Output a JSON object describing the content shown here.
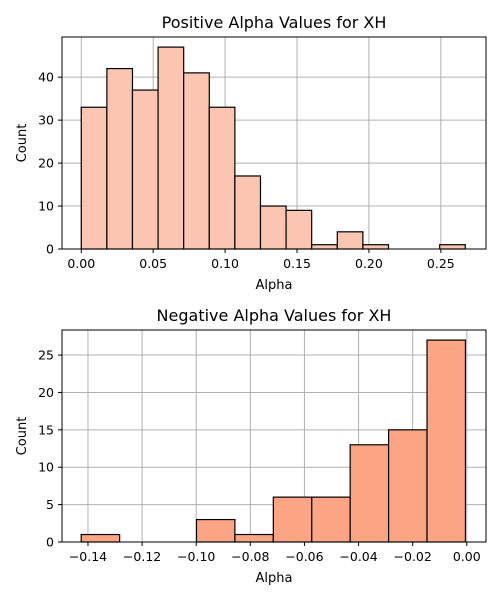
{
  "chart_data": [
    {
      "type": "bar",
      "title": "Positive Alpha Values for XH",
      "xlabel": "Alpha",
      "ylabel": "Count",
      "xlim": [
        -0.0134,
        0.2814
      ],
      "ylim": [
        0,
        49.35
      ],
      "xticks": [
        0.0,
        0.05,
        0.1,
        0.15,
        0.2,
        0.25
      ],
      "xtick_labels": [
        "0.00",
        "0.05",
        "0.10",
        "0.15",
        "0.20",
        "0.25"
      ],
      "yticks": [
        0,
        10,
        20,
        30,
        40
      ],
      "yticks_labels": [
        "0",
        "10",
        "20",
        "30",
        "40"
      ],
      "grid": true,
      "bar_color": "#fcc5b1",
      "bins": [
        {
          "x0": 0.0,
          "x1": 0.0178,
          "value": 33
        },
        {
          "x0": 0.0178,
          "x1": 0.0356,
          "value": 42
        },
        {
          "x0": 0.0356,
          "x1": 0.0534,
          "value": 37
        },
        {
          "x0": 0.0534,
          "x1": 0.0712,
          "value": 47
        },
        {
          "x0": 0.0712,
          "x1": 0.089,
          "value": 41
        },
        {
          "x0": 0.089,
          "x1": 0.1068,
          "value": 33
        },
        {
          "x0": 0.1068,
          "x1": 0.1246,
          "value": 17
        },
        {
          "x0": 0.1246,
          "x1": 0.1424,
          "value": 10
        },
        {
          "x0": 0.1424,
          "x1": 0.1602,
          "value": 9
        },
        {
          "x0": 0.1602,
          "x1": 0.178,
          "value": 1
        },
        {
          "x0": 0.178,
          "x1": 0.1958,
          "value": 4
        },
        {
          "x0": 0.1958,
          "x1": 0.2136,
          "value": 1
        },
        {
          "x0": 0.2136,
          "x1": 0.2314,
          "value": 0
        },
        {
          "x0": 0.2314,
          "x1": 0.2492,
          "value": 0
        },
        {
          "x0": 0.2492,
          "x1": 0.267,
          "value": 1
        }
      ]
    },
    {
      "type": "bar",
      "title": "Negative Alpha Values for XH",
      "xlabel": "Alpha",
      "ylabel": "Count",
      "xlim": [
        -0.1496,
        0.0071
      ],
      "ylim": [
        0,
        28.35
      ],
      "xticks": [
        -0.14,
        -0.12,
        -0.1,
        -0.08,
        -0.06,
        -0.04,
        -0.02,
        0.0
      ],
      "xtick_labels": [
        "−0.14",
        "−0.12",
        "−0.10",
        "−0.08",
        "−0.06",
        "−0.04",
        "−0.02",
        "0.00"
      ],
      "yticks": [
        0,
        5,
        10,
        15,
        20,
        25
      ],
      "yticks_labels": [
        "0",
        "5",
        "10",
        "15",
        "20",
        "25"
      ],
      "grid": true,
      "bar_color": "#fca585",
      "bins": [
        {
          "x0": -0.1425,
          "x1": -0.1283,
          "value": 1
        },
        {
          "x0": -0.1283,
          "x1": -0.1141,
          "value": 0
        },
        {
          "x0": -0.1141,
          "x1": -0.0999,
          "value": 0
        },
        {
          "x0": -0.0999,
          "x1": -0.0857,
          "value": 3
        },
        {
          "x0": -0.0857,
          "x1": -0.0715,
          "value": 1
        },
        {
          "x0": -0.0715,
          "x1": -0.0573,
          "value": 6
        },
        {
          "x0": -0.0573,
          "x1": -0.0431,
          "value": 6
        },
        {
          "x0": -0.0431,
          "x1": -0.0289,
          "value": 13
        },
        {
          "x0": -0.0289,
          "x1": -0.0147,
          "value": 15
        },
        {
          "x0": -0.0147,
          "x1": -0.0005,
          "value": 27
        }
      ]
    }
  ]
}
